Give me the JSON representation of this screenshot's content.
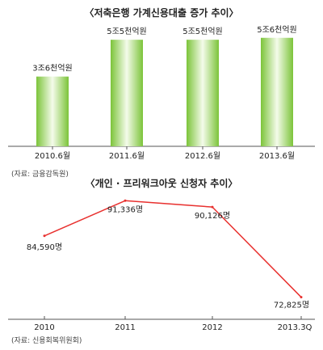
{
  "chart_data": [
    {
      "type": "bar",
      "title": "〈저축은행 가계신용대출 증가 추이〉",
      "categories": [
        "2010.6월",
        "2011.6월",
        "2012.6월",
        "2013.6월"
      ],
      "values": [
        3.6,
        5.5,
        5.5,
        5.6
      ],
      "value_labels": [
        "3조6천억원",
        "5조5천억원",
        "5조5천억원",
        "5조6천억원"
      ],
      "ylim": [
        0,
        6.3
      ],
      "grid": false,
      "bar_color": "#7cc43a",
      "bar_highlight": "#f4fbea",
      "source": "(자료: 금융감독원)"
    },
    {
      "type": "line",
      "title": "〈개인 · 프리워크아웃 신청자 추이〉",
      "categories": [
        "2010",
        "2011",
        "2012",
        "2013.3Q"
      ],
      "values": [
        84590,
        91336,
        90126,
        72825
      ],
      "value_labels": [
        "84,590명",
        "91,336명",
        "90,126명",
        "72,825명"
      ],
      "ylim": [
        72000,
        92000
      ],
      "grid": false,
      "line_color": "#e8312f",
      "source": "(자료: 신용회복위원회)"
    }
  ]
}
